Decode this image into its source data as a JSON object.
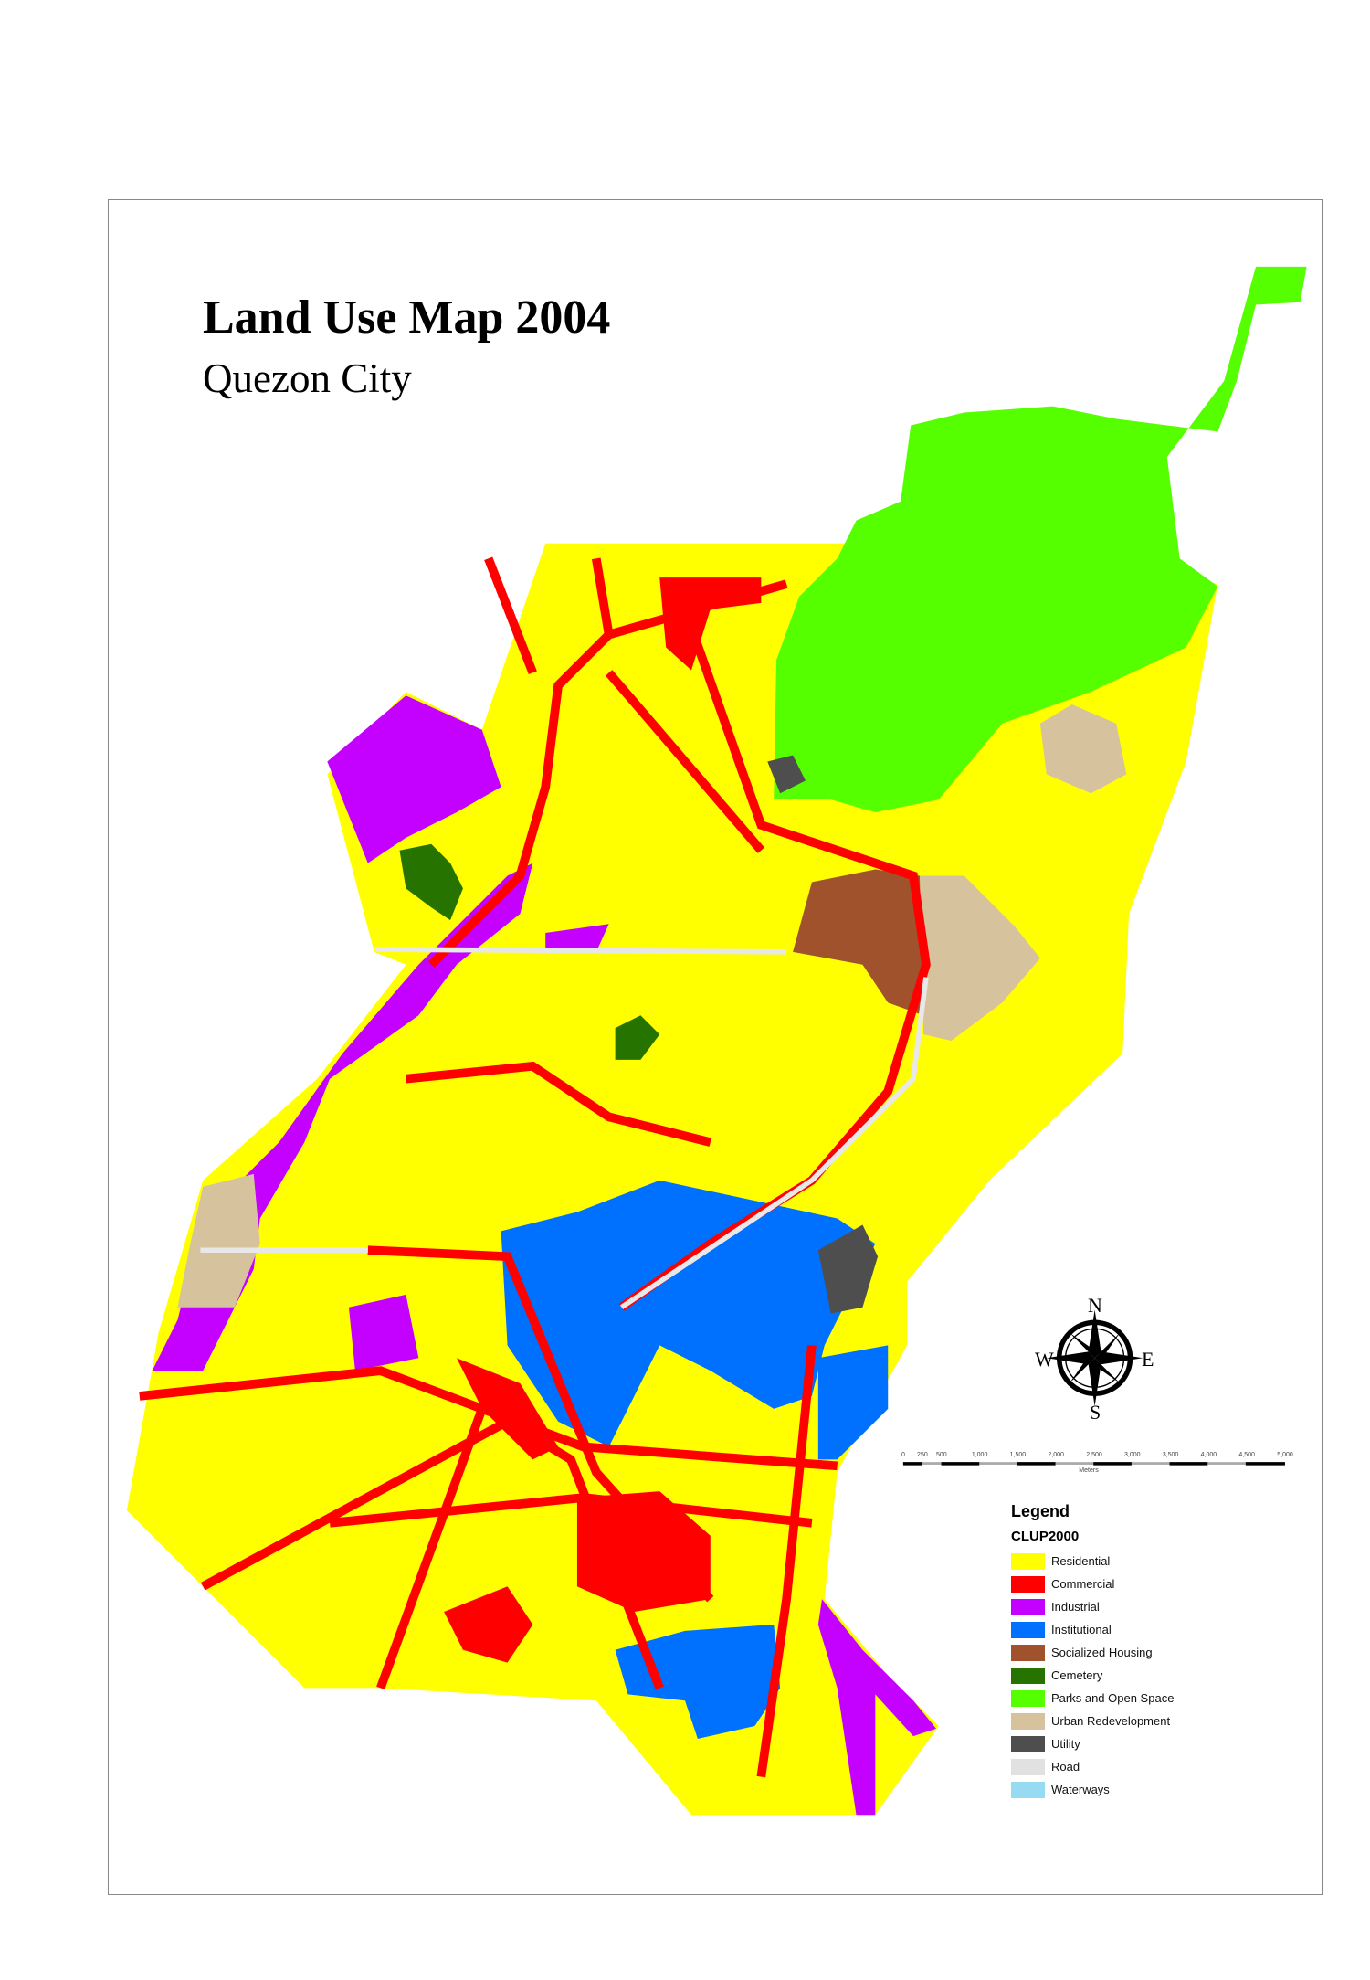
{
  "title": "Land Use Map 2004",
  "subtitle": "Quezon City",
  "compass": {
    "n": "N",
    "s": "S",
    "e": "E",
    "w": "W"
  },
  "scale_bar": {
    "labels": [
      "0",
      "250",
      "500",
      "1,000",
      "1,500",
      "2,000",
      "2,500",
      "3,000",
      "3,500",
      "4,000",
      "4,500",
      "5,000"
    ],
    "values": [
      0,
      250,
      500,
      1000,
      1500,
      2000,
      2500,
      3000,
      3500,
      4000,
      4500,
      5000
    ],
    "unit": "Meters"
  },
  "legend": {
    "heading": "Legend",
    "subheading": "CLUP2000",
    "items": [
      {
        "label": "Residential",
        "color": "#ffff00"
      },
      {
        "label": "Commercial",
        "color": "#ff0000"
      },
      {
        "label": "Industrial",
        "color": "#c400ff"
      },
      {
        "label": "Institutional",
        "color": "#0070ff"
      },
      {
        "label": "Socialized Housing",
        "color": "#a0522d"
      },
      {
        "label": "Cemetery",
        "color": "#267300"
      },
      {
        "label": "Parks and Open Space",
        "color": "#55ff00"
      },
      {
        "label": "Urban Redevelopment",
        "color": "#d7c29e"
      },
      {
        "label": "Utility",
        "color": "#4e4e4e"
      },
      {
        "label": "Road",
        "color": "#e1e1e1"
      },
      {
        "label": "Waterways",
        "color": "#97dbf2"
      }
    ]
  }
}
